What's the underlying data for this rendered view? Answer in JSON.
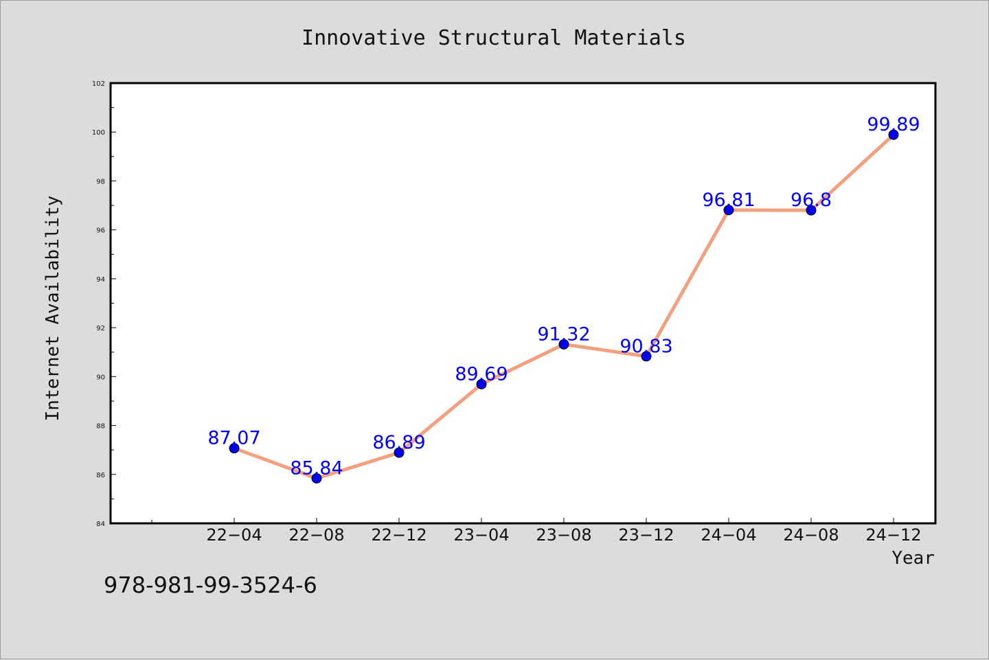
{
  "chart_data": {
    "type": "line",
    "title": "Innovative Structural Materials",
    "xlabel": "Year",
    "ylabel": "Internet Availability",
    "categories": [
      "22-04",
      "22-08",
      "22-12",
      "23-04",
      "23-08",
      "23-12",
      "24-04",
      "24-08",
      "24-12"
    ],
    "tick_labels": [
      "22−04",
      "22−08",
      "22−12",
      "23−04",
      "23−08",
      "23−12",
      "24−04",
      "24−08",
      "24−12"
    ],
    "values": [
      87.07,
      85.84,
      86.89,
      89.69,
      91.32,
      90.83,
      96.81,
      96.8,
      99.89
    ],
    "data_labels": [
      "87.07",
      "85.84",
      "86.89",
      "89.69",
      "91.32",
      "90.83",
      "96.81",
      "96.8",
      "99.89"
    ],
    "ylim": [
      84,
      102
    ],
    "yticks": [
      84,
      86,
      88,
      90,
      92,
      94,
      96,
      98,
      100,
      102
    ],
    "grid": false,
    "line_color": "#f4a07e",
    "marker_color": "#0000ee",
    "label_color": "#0000ff"
  },
  "footer": {
    "isbn": "978-981-99-3524-6"
  }
}
